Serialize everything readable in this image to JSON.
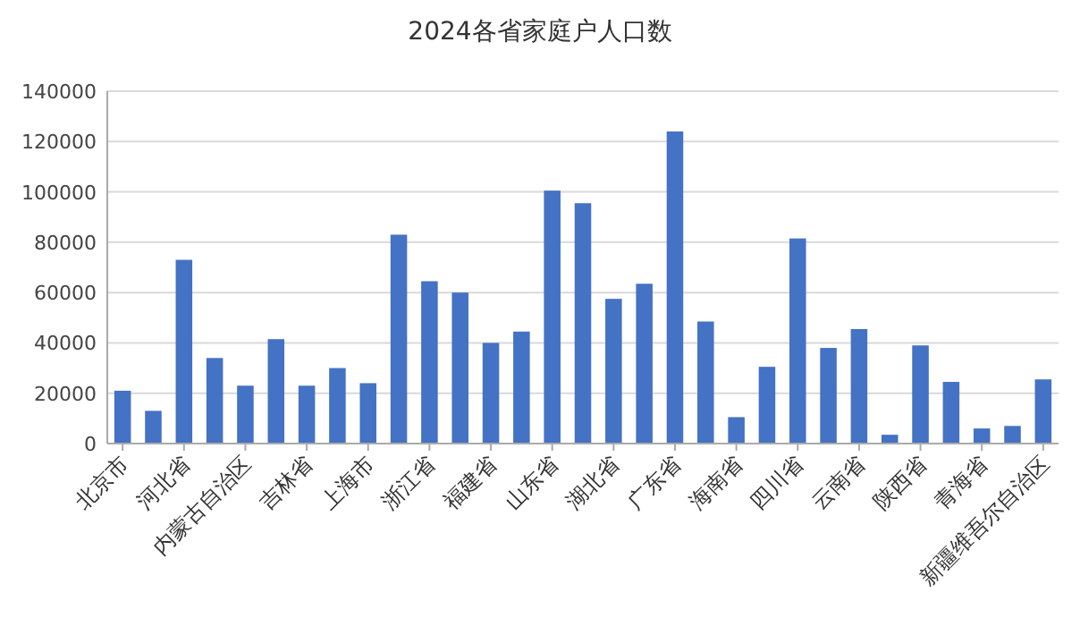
{
  "chart_data": {
    "type": "bar",
    "title": "2024各省家庭户人口数",
    "categories": [
      "北京市",
      null,
      "河北省",
      null,
      "内蒙古自治区",
      null,
      "吉林省",
      null,
      "上海市",
      null,
      "浙江省",
      null,
      "福建省",
      null,
      "山东省",
      null,
      "湖北省",
      null,
      "广东省",
      null,
      "海南省",
      null,
      "四川省",
      null,
      "云南省",
      null,
      "陕西省",
      null,
      "青海省",
      null,
      "新疆维吾尔自治区"
    ],
    "values": [
      21000,
      13000,
      73000,
      34000,
      23000,
      41500,
      23000,
      30000,
      24000,
      83000,
      64500,
      60000,
      40000,
      44500,
      100500,
      95500,
      57500,
      63500,
      124000,
      48500,
      10500,
      30500,
      81500,
      38000,
      45500,
      3500,
      39000,
      24500,
      6000,
      7000,
      25500
    ],
    "color": "#4472c4",
    "ylim": [
      0,
      140000
    ],
    "yticks": [
      0,
      20000,
      40000,
      60000,
      80000,
      100000,
      120000,
      140000
    ],
    "grid": "y"
  }
}
